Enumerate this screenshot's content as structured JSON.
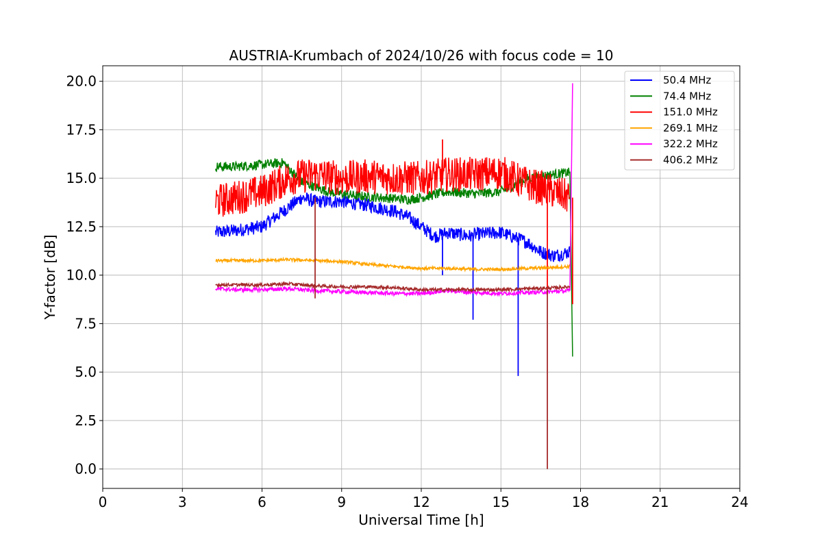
{
  "chart_data": {
    "type": "line",
    "title": "AUSTRIA-Krumbach of 2024/10/26 with focus code = 10",
    "xlabel": "Universal Time [h]",
    "ylabel": "Y-factor [dB]",
    "xlim": [
      0,
      24
    ],
    "ylim": [
      -1.0,
      20.8
    ],
    "xticks": [
      "0",
      "3",
      "6",
      "9",
      "12",
      "15",
      "18",
      "21",
      "24"
    ],
    "yticks": [
      "0.0",
      "2.5",
      "5.0",
      "7.5",
      "10.0",
      "12.5",
      "15.0",
      "17.5",
      "20.0"
    ],
    "grid": true,
    "legend_position": "top-right",
    "series": [
      {
        "name": " 50.4 MHz",
        "color": "#0000ff",
        "x": [
          4.25,
          5,
          6,
          7,
          7.5,
          8,
          9,
          10,
          11,
          11.5,
          12,
          12.5,
          13,
          13.9,
          14,
          15,
          15.6,
          16,
          16.5,
          17,
          17.6
        ],
        "y": [
          12.2,
          12.3,
          12.5,
          13.5,
          14.0,
          13.8,
          13.8,
          13.6,
          13.3,
          13.0,
          12.5,
          12.0,
          12.2,
          12.0,
          12.1,
          12.2,
          11.9,
          11.7,
          11.2,
          11.0,
          11.2
        ],
        "spikes": [
          [
            13.95,
            7.7
          ],
          [
            15.65,
            4.8
          ],
          [
            12.8,
            10.0
          ]
        ]
      },
      {
        "name": " 74.4 MHz",
        "color": "#008000",
        "x": [
          4.25,
          5,
          6,
          6.8,
          7.5,
          8.5,
          9.5,
          10.5,
          11.5,
          12,
          13,
          14,
          15,
          16,
          17,
          17.6,
          17.7
        ],
        "y": [
          15.6,
          15.6,
          15.7,
          15.8,
          14.8,
          14.3,
          14.1,
          14.0,
          13.9,
          14.0,
          14.3,
          14.2,
          14.3,
          15.0,
          15.2,
          15.3,
          5.8
        ],
        "spikes": [
          [
            17.7,
            5.8
          ]
        ]
      },
      {
        "name": " 151.0 MHz",
        "color": "#ff0000",
        "x": [
          4.25,
          5,
          6,
          7,
          8,
          9,
          10,
          11,
          12,
          13,
          14,
          15,
          16,
          17,
          17.6
        ],
        "y": [
          13.8,
          14.0,
          14.3,
          15.0,
          15.2,
          15.0,
          15.1,
          15.0,
          15.0,
          15.2,
          15.2,
          15.3,
          14.7,
          14.3,
          14.0
        ],
        "spikes": [
          [
            16.75,
            9.0
          ],
          [
            17.7,
            8.5
          ],
          [
            12.8,
            17.0
          ]
        ]
      },
      {
        "name": " 269.1 MHz",
        "color": "#ffa500",
        "x": [
          4.25,
          5,
          6,
          7,
          8,
          9,
          10,
          11,
          12,
          13,
          14,
          15,
          16,
          17,
          17.6
        ],
        "y": [
          10.75,
          10.75,
          10.75,
          10.8,
          10.75,
          10.7,
          10.55,
          10.45,
          10.35,
          10.35,
          10.3,
          10.3,
          10.35,
          10.4,
          10.45
        ],
        "spikes": []
      },
      {
        "name": " 322.2 MHz",
        "color": "#ff00ff",
        "x": [
          4.25,
          5,
          6,
          7,
          8,
          9,
          10,
          11,
          12,
          13,
          14,
          15,
          16,
          17,
          17.6,
          17.7
        ],
        "y": [
          9.3,
          9.25,
          9.25,
          9.3,
          9.2,
          9.15,
          9.1,
          9.05,
          9.05,
          9.2,
          9.1,
          9.05,
          9.1,
          9.15,
          9.2,
          19.9
        ],
        "spikes": [
          [
            17.7,
            19.9
          ]
        ]
      },
      {
        "name": " 406.2 MHz",
        "color": "#a52a2a",
        "x": [
          4.25,
          5,
          6,
          7,
          8,
          9,
          10,
          11,
          12,
          13,
          14,
          15,
          16,
          17,
          17.6
        ],
        "y": [
          9.5,
          9.5,
          9.5,
          9.55,
          9.45,
          9.4,
          9.4,
          9.35,
          9.25,
          9.25,
          9.25,
          9.25,
          9.3,
          9.35,
          9.4
        ],
        "spikes": [
          [
            8.0,
            8.8
          ],
          [
            8.0,
            14.0
          ],
          [
            16.75,
            0.0
          ]
        ]
      }
    ]
  }
}
